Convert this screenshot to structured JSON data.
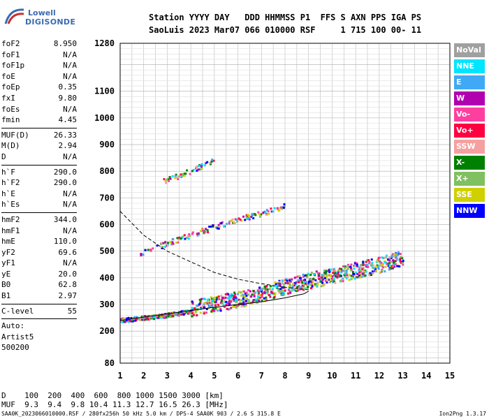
{
  "logo": {
    "line1": "Lowell",
    "line2": "DIGISONDE"
  },
  "header": {
    "row1": "Station YYYY DAY   DDD HHMMSS P1  FFS S AXN PPS IGA PS",
    "row2": "SaoLuis 2023 Mar07 066 010000 RSF     1 715 100 00- 11"
  },
  "params_group1": [
    {
      "k": "foF2",
      "v": "8.950"
    },
    {
      "k": "foF1",
      "v": "N/A"
    },
    {
      "k": "foF1p",
      "v": "N/A"
    },
    {
      "k": "foE",
      "v": "N/A"
    },
    {
      "k": "foEp",
      "v": "0.35"
    },
    {
      "k": "fxI",
      "v": "9.80"
    },
    {
      "k": "foEs",
      "v": "N/A"
    },
    {
      "k": "fmin",
      "v": "4.45"
    }
  ],
  "params_group2": [
    {
      "k": "MUF(D)",
      "v": "26.33"
    },
    {
      "k": "M(D)",
      "v": "2.94"
    },
    {
      "k": "D",
      "v": "N/A"
    }
  ],
  "params_group3": [
    {
      "k": "h`F",
      "v": "290.0"
    },
    {
      "k": "h`F2",
      "v": "290.0"
    },
    {
      "k": "h`E",
      "v": "N/A"
    },
    {
      "k": "h`Es",
      "v": "N/A"
    }
  ],
  "params_group4": [
    {
      "k": "hmF2",
      "v": "344.0"
    },
    {
      "k": "hmF1",
      "v": "N/A"
    },
    {
      "k": "hmE",
      "v": "110.0"
    },
    {
      "k": "yF2",
      "v": "69.6"
    },
    {
      "k": "yF1",
      "v": "N/A"
    },
    {
      "k": "yE",
      "v": "20.0"
    },
    {
      "k": "B0",
      "v": "62.8"
    },
    {
      "k": "B1",
      "v": "2.97"
    }
  ],
  "params_group5": [
    {
      "k": "C-level",
      "v": "55"
    }
  ],
  "autoscale": {
    "line1": "Auto:",
    "line2": "Artist5",
    "line3": "500200"
  },
  "legend": [
    {
      "label": "NoVal",
      "color": "#a0a0a0"
    },
    {
      "label": "NNE",
      "color": "#00e5ff"
    },
    {
      "label": "E",
      "color": "#3fa9f5"
    },
    {
      "label": "W",
      "color": "#b000b0"
    },
    {
      "label": "Vo-",
      "color": "#ff3fa0"
    },
    {
      "label": "Vo+",
      "color": "#ff0040"
    },
    {
      "label": "SSW",
      "color": "#f5a0a0"
    },
    {
      "label": "X-",
      "color": "#008000"
    },
    {
      "label": "X+",
      "color": "#80c060"
    },
    {
      "label": "SSE",
      "color": "#d0d000"
    },
    {
      "label": "NNW",
      "color": "#0000ff"
    }
  ],
  "muf_table": {
    "row1": "D    100  200  400  600  800 1000 1500 3000 [km]",
    "row2": "MUF  9.3  9.4  9.8 10.4 11.3 12.7 16.5 26.3 [MHz]"
  },
  "footer": {
    "left": "SAA0K_2023066010000.RSF / 280fx256h 50 kHz 5.0 km / DPS-4 SAA0K 903 / 2.6 S 315.8 E",
    "right": "Ion2Png 1.3.17"
  },
  "chart_data": {
    "type": "scatter",
    "x_ticks": [
      "1",
      "2",
      "3",
      "4",
      "5",
      "6",
      "7",
      "8",
      "9",
      "10",
      "11",
      "12",
      "13",
      "14",
      "15"
    ],
    "y_ticks": [
      "80",
      "200",
      "300",
      "400",
      "500",
      "600",
      "700",
      "800",
      "900",
      "1000",
      "1100",
      "1280"
    ],
    "xlim": [
      1,
      15
    ],
    "ylim": [
      80,
      1280
    ],
    "grid": true,
    "traces": [
      {
        "name": "O-trace F2",
        "points": [
          [
            1.0,
            240
          ],
          [
            2,
            250
          ],
          [
            3,
            260
          ],
          [
            4,
            275
          ],
          [
            5,
            295
          ],
          [
            6,
            310
          ],
          [
            7,
            330
          ],
          [
            8,
            360
          ],
          [
            9,
            380
          ],
          [
            10,
            400
          ],
          [
            11,
            420
          ],
          [
            12,
            440
          ],
          [
            13,
            470
          ]
        ]
      },
      {
        "name": "2nd hop",
        "points": [
          [
            1.8,
            490
          ],
          [
            3,
            530
          ],
          [
            4,
            560
          ],
          [
            5,
            590
          ],
          [
            6,
            620
          ],
          [
            7,
            640
          ],
          [
            8,
            670
          ]
        ]
      },
      {
        "name": "3rd hop",
        "points": [
          [
            2.8,
            760
          ],
          [
            4,
            800
          ],
          [
            5,
            840
          ]
        ]
      }
    ],
    "dashed_profile": [
      [
        1,
        650
      ],
      [
        2,
        560
      ],
      [
        3,
        500
      ],
      [
        4,
        460
      ],
      [
        5,
        420
      ],
      [
        6,
        395
      ],
      [
        7,
        378
      ],
      [
        8,
        365
      ],
      [
        9,
        355
      ]
    ],
    "solid_profile": [
      [
        1,
        240
      ],
      [
        3,
        265
      ],
      [
        5,
        290
      ],
      [
        7,
        310
      ],
      [
        8,
        325
      ],
      [
        8.8,
        340
      ],
      [
        9,
        350
      ]
    ]
  }
}
